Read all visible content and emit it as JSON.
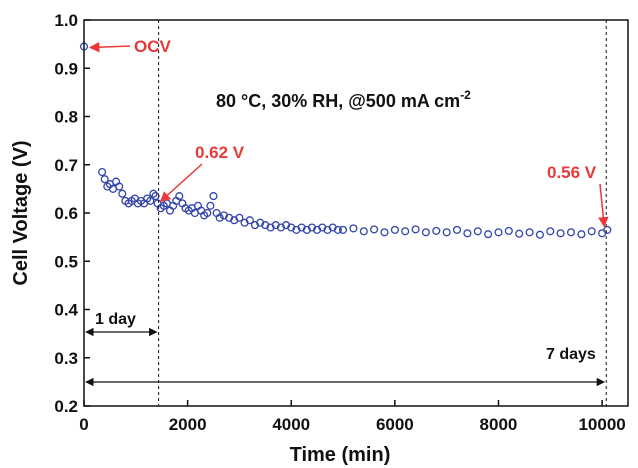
{
  "chart_data": {
    "type": "scatter",
    "title": "",
    "xlabel": "Time  (min)",
    "ylabel": "Cell Voltage (V)",
    "xlim": [
      0,
      10500
    ],
    "ylim": [
      0.2,
      1.0
    ],
    "xticks": [
      "0",
      "2000",
      "4000",
      "6000",
      "8000",
      "10000"
    ],
    "yticks": [
      "0.2",
      "0.3",
      "0.4",
      "0.5",
      "0.6",
      "0.7",
      "0.8",
      "0.9",
      "1.0"
    ],
    "grid": false,
    "colors": {
      "series": "#3344aa",
      "annotation": "#e83a3a",
      "text": "#111111"
    },
    "condition_text": "80 °C, 30% RH, @500 mA cm",
    "condition_sup": "-2",
    "series": [
      {
        "name": "",
        "x": [
          0,
          350,
          400,
          450,
          500,
          560,
          620,
          680,
          740,
          800,
          860,
          920,
          980,
          1040,
          1100,
          1160,
          1220,
          1280,
          1340,
          1380,
          1420,
          1480,
          1540,
          1600,
          1660,
          1720,
          1780,
          1840,
          1900,
          1960,
          2020,
          2080,
          2140,
          2200,
          2260,
          2320,
          2380,
          2440,
          2500,
          2560,
          2620,
          2700,
          2800,
          2900,
          3000,
          3100,
          3200,
          3300,
          3400,
          3500,
          3600,
          3700,
          3800,
          3900,
          4000,
          4100,
          4200,
          4300,
          4400,
          4500,
          4600,
          4700,
          4800,
          4900,
          5000,
          5200,
          5400,
          5600,
          5800,
          6000,
          6200,
          6400,
          6600,
          6800,
          7000,
          7200,
          7400,
          7600,
          7800,
          8000,
          8200,
          8400,
          8600,
          8800,
          9000,
          9200,
          9400,
          9600,
          9800,
          10000,
          10100
        ],
        "y": [
          0.945,
          0.685,
          0.67,
          0.655,
          0.66,
          0.65,
          0.665,
          0.655,
          0.64,
          0.625,
          0.62,
          0.625,
          0.63,
          0.62,
          0.625,
          0.62,
          0.63,
          0.625,
          0.64,
          0.635,
          0.62,
          0.61,
          0.615,
          0.62,
          0.605,
          0.615,
          0.625,
          0.635,
          0.62,
          0.61,
          0.605,
          0.61,
          0.6,
          0.615,
          0.605,
          0.595,
          0.6,
          0.615,
          0.635,
          0.6,
          0.59,
          0.595,
          0.59,
          0.585,
          0.59,
          0.58,
          0.585,
          0.575,
          0.58,
          0.575,
          0.57,
          0.575,
          0.57,
          0.575,
          0.57,
          0.565,
          0.57,
          0.565,
          0.57,
          0.565,
          0.57,
          0.565,
          0.57,
          0.565,
          0.565,
          0.568,
          0.562,
          0.566,
          0.56,
          0.565,
          0.562,
          0.566,
          0.56,
          0.563,
          0.56,
          0.565,
          0.558,
          0.562,
          0.556,
          0.56,
          0.563,
          0.557,
          0.56,
          0.555,
          0.562,
          0.558,
          0.56,
          0.556,
          0.562,
          0.558,
          0.565
        ]
      }
    ],
    "annotations": {
      "ocv": {
        "label": "OCV"
      },
      "v_day1": {
        "label": "0.62 V"
      },
      "v_day7": {
        "label": "0.56 V"
      },
      "day1": {
        "label": "1 day",
        "x_start": 0,
        "x_end": 1440
      },
      "day7": {
        "label": "7 days",
        "x_start": 0,
        "x_end": 10080
      }
    }
  }
}
